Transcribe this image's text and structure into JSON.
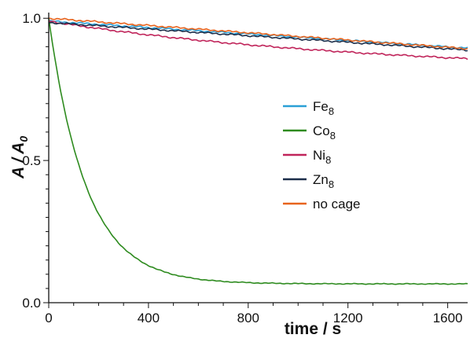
{
  "chart_data": {
    "type": "line",
    "xlabel": "time / s",
    "ylabel_main": "A",
    "ylabel_sep": " / ",
    "ylabel_sub_base": "A",
    "ylabel_sub": "0",
    "xlim": [
      0,
      1680
    ],
    "ylim": [
      0,
      1.02
    ],
    "xticks": [
      0,
      400,
      800,
      1200,
      1600
    ],
    "xtick_labels": [
      "0",
      "400",
      "800",
      "1200",
      "1600"
    ],
    "yticks": [
      0,
      0.5,
      1.0
    ],
    "ytick_labels": [
      "0.0",
      "0.5",
      "1.0"
    ],
    "grid": false,
    "legend_position": "center-right",
    "series": [
      {
        "name": "Fe",
        "sub": "8",
        "color": "#2a9fd6",
        "model": "linear",
        "start": 0.99,
        "end": 0.895
      },
      {
        "name": "Co",
        "sub": "8",
        "color": "#2e8b1f",
        "model": "exp",
        "start": 1.0,
        "plateau": 0.066,
        "tau": 150
      },
      {
        "name": "Ni",
        "sub": "8",
        "color": "#c0245a",
        "model": "decay",
        "start": 0.99,
        "end": 0.858
      },
      {
        "name": "Zn",
        "sub": "8",
        "color": "#1c2e4a",
        "model": "linear",
        "start": 0.985,
        "end": 0.888
      },
      {
        "name": "no cage",
        "sub": "",
        "color": "#e8641e",
        "model": "linear",
        "start": 1.0,
        "end": 0.893
      }
    ]
  }
}
